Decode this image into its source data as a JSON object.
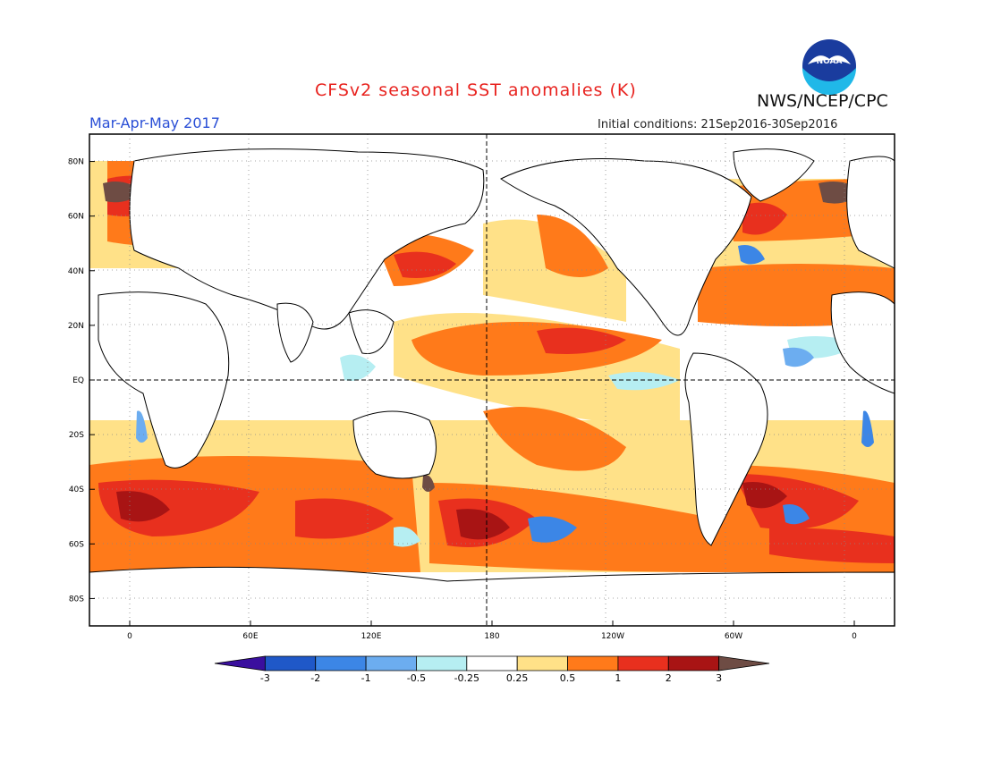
{
  "header": {
    "title": "CFSv2 seasonal SST anomalies (K)",
    "agency": "NWS/NCEP/CPC",
    "season": "Mar-Apr-May 2017",
    "initial_conditions": "Initial conditions: 21Sep2016-30Sep2016",
    "logo_text": "NOAA"
  },
  "map": {
    "projection": "cylindrical equidistant",
    "lon_range": [
      -20,
      380
    ],
    "lat_range": [
      -90,
      90
    ],
    "lat_ticks": [
      "80N",
      "60N",
      "40N",
      "20N",
      "EQ",
      "20S",
      "40S",
      "60S",
      "80S"
    ],
    "lat_values": [
      80,
      60,
      40,
      20,
      0,
      -20,
      -40,
      -60,
      -80
    ],
    "lon_ticks": [
      "0",
      "60E",
      "120E",
      "180",
      "120W",
      "60W",
      "0"
    ],
    "lon_values": [
      0,
      60,
      120,
      180,
      240,
      300,
      360
    ],
    "reference_lines": [
      "equator (dashed)",
      "180 meridian (dashed)"
    ],
    "grid": "dotted"
  },
  "colorbar": {
    "labels": [
      "-3",
      "-2",
      "-1",
      "-0.5",
      "-0.25",
      "0.25",
      "0.5",
      "1",
      "2",
      "3"
    ],
    "colors": [
      "#3a0f9e",
      "#1f58c8",
      "#3c86e6",
      "#6cadf0",
      "#b6eef2",
      "#ffffff",
      "#ffe188",
      "#ff7a1a",
      "#e8301e",
      "#a81414",
      "#6e4c44"
    ]
  }
}
